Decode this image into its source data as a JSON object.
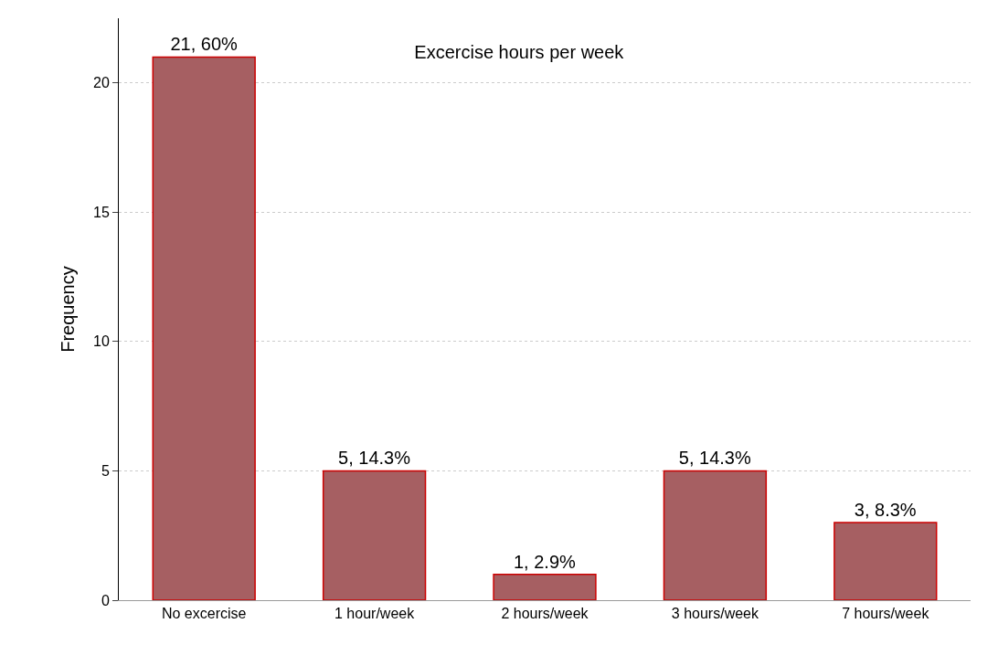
{
  "chart_data": {
    "type": "bar",
    "title": "Excercise hours per week",
    "ylabel": "Frequency",
    "categories": [
      "No excercise",
      "1 hour/week",
      "2 hours/week",
      "3 hours/week",
      "7 hours/week"
    ],
    "values": [
      21,
      5,
      1,
      5,
      3
    ],
    "value_labels": [
      "21, 60%",
      "5, 14.3%",
      "1, 2.9%",
      "5, 14.3%",
      "3, 8.3%"
    ],
    "color": "#a65f62",
    "ylim": [
      0,
      22.5
    ],
    "yticks": [
      0,
      5,
      10,
      15,
      20
    ],
    "grid": "y",
    "legend": false
  }
}
